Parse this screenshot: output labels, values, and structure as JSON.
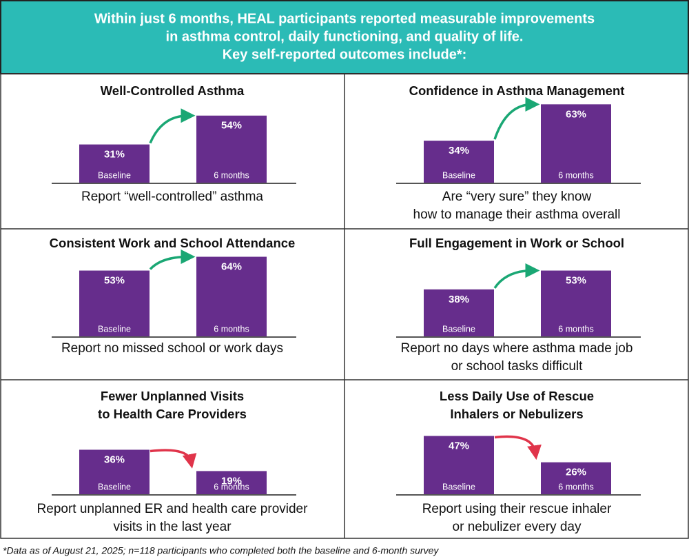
{
  "header": {
    "lines": [
      "Within just 6 months, HEAL participants reported measurable improvements",
      "in asthma control, daily functioning, and quality of life.",
      "Key self-reported outcomes include*:"
    ]
  },
  "footnote": "*Data as of August 21, 2025; n=118 participants who completed both the baseline and 6-month survey",
  "chart_data": [
    {
      "type": "bar",
      "title": [
        "Well-Controlled Asthma"
      ],
      "categories": [
        "Baseline",
        "6 months"
      ],
      "values": [
        31,
        54
      ],
      "value_labels": [
        "31%",
        "54%"
      ],
      "color": "#662d8c",
      "arrow_color": "#1aa774",
      "caption": [
        "Report “well-controlled” asthma"
      ]
    },
    {
      "type": "bar",
      "title": [
        "Confidence in Asthma Management"
      ],
      "categories": [
        "Baseline",
        "6 months"
      ],
      "values": [
        34,
        63
      ],
      "value_labels": [
        "34%",
        "63%"
      ],
      "color": "#662d8c",
      "arrow_color": "#1aa774",
      "caption": [
        "Are “very sure” they know",
        "how to manage their asthma overall"
      ]
    },
    {
      "type": "bar",
      "title": [
        "Consistent Work and School Attendance"
      ],
      "categories": [
        "Baseline",
        "6 months"
      ],
      "values": [
        53,
        64
      ],
      "value_labels": [
        "53%",
        "64%"
      ],
      "color": "#662d8c",
      "arrow_color": "#1aa774",
      "caption": [
        "Report no missed school or work days"
      ]
    },
    {
      "type": "bar",
      "title": [
        "Full Engagement in Work or School"
      ],
      "categories": [
        "Baseline",
        "6 months"
      ],
      "values": [
        38,
        53
      ],
      "value_labels": [
        "38%",
        "53%"
      ],
      "color": "#662d8c",
      "arrow_color": "#1aa774",
      "caption": [
        "Report no days where asthma made job",
        "or school tasks difficult"
      ]
    },
    {
      "type": "bar",
      "title": [
        "Fewer Unplanned Visits",
        "to Health Care Providers"
      ],
      "categories": [
        "Baseline",
        "6 months"
      ],
      "values": [
        36,
        19
      ],
      "value_labels": [
        "36%",
        "19%"
      ],
      "color": "#662d8c",
      "arrow_color": "#e0344a",
      "caption": [
        "Report unplanned ER and health care provider",
        "visits in the last year"
      ]
    },
    {
      "type": "bar",
      "title": [
        "Less Daily Use of Rescue",
        "Inhalers or Nebulizers"
      ],
      "categories": [
        "Baseline",
        "6 months"
      ],
      "values": [
        47,
        26
      ],
      "value_labels": [
        "47%",
        "26%"
      ],
      "color": "#662d8c",
      "arrow_color": "#e0344a",
      "caption": [
        "Report using their rescue inhaler",
        "or nebulizer every day"
      ]
    }
  ]
}
